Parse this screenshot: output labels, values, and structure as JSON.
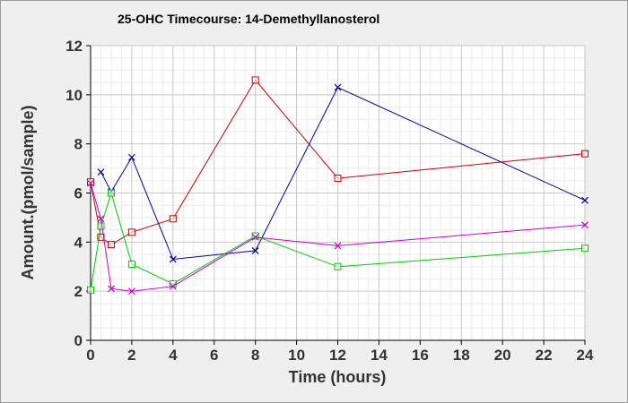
{
  "chart_data": {
    "type": "line",
    "title": "25-OHC Timecourse: 14-Demethyllanosterol",
    "xlabel": "Time (hours)",
    "ylabel": "Amount.(pmol/sample)",
    "xlim": [
      0,
      24
    ],
    "ylim": [
      0,
      12
    ],
    "xticks": [
      0,
      2,
      4,
      6,
      8,
      10,
      12,
      14,
      16,
      18,
      20,
      22,
      24
    ],
    "yticks": [
      0,
      2,
      4,
      6,
      8,
      10,
      12
    ],
    "x_minor_step": 0.5,
    "y_minor_step": 0.5,
    "grid": true,
    "legend": "none",
    "series": [
      {
        "color": "#cc0000",
        "marker": "square",
        "points": [
          [
            0,
            6.45
          ],
          [
            0.5,
            4.2
          ],
          [
            1,
            3.9
          ],
          [
            2,
            4.4
          ],
          [
            4,
            4.95
          ],
          [
            8,
            10.6
          ],
          [
            12,
            6.6
          ],
          [
            24,
            7.6
          ]
        ]
      },
      {
        "color": "#000099",
        "marker": "x",
        "points": [
          [
            0.5,
            6.85
          ],
          [
            1,
            6.05
          ],
          [
            2,
            7.45
          ],
          [
            4,
            3.3
          ],
          [
            8,
            3.65
          ],
          [
            12,
            10.3
          ],
          [
            24,
            5.7
          ]
        ]
      },
      {
        "color": "#00cc00",
        "marker": "square",
        "points": [
          [
            0,
            2.05
          ],
          [
            0.5,
            4.65
          ],
          [
            1,
            6.0
          ],
          [
            2,
            3.1
          ],
          [
            4,
            2.3
          ],
          [
            8,
            4.25
          ],
          [
            12,
            3.0
          ],
          [
            24,
            3.75
          ]
        ]
      },
      {
        "color": "#cc00cc",
        "marker": "x",
        "points": [
          [
            0,
            6.4
          ],
          [
            0.5,
            4.95
          ],
          [
            1,
            2.1
          ],
          [
            2,
            2.0
          ],
          [
            4,
            2.2
          ],
          [
            8,
            4.2
          ],
          [
            12,
            3.85
          ],
          [
            24,
            4.7
          ]
        ]
      }
    ]
  }
}
